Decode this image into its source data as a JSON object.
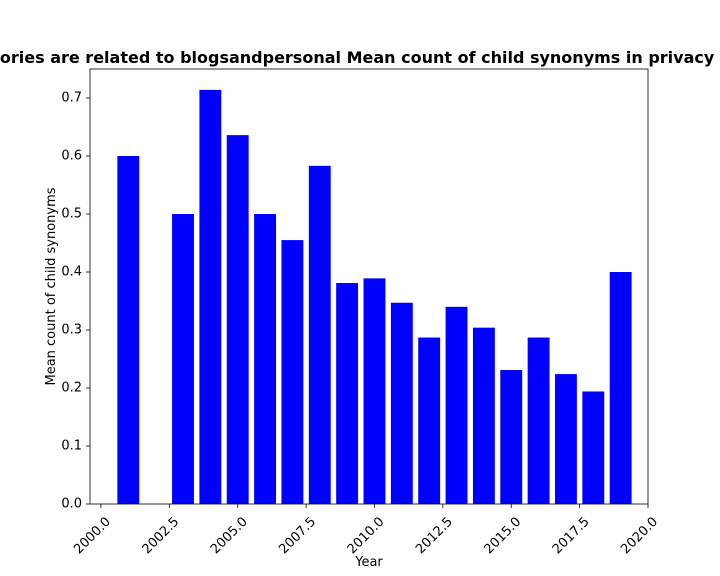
{
  "chart_data": {
    "type": "bar",
    "title": "Categories are related to blogsandpersonal Mean count of child synonyms in privacy policies",
    "xlabel": "Year",
    "ylabel": "Mean count of child synonyms",
    "bar_color": "#0000ff",
    "xlim": [
      1999.6,
      2020.0
    ],
    "ylim": [
      0.0,
      0.75
    ],
    "x_ticks": [
      2000.0,
      2002.5,
      2005.0,
      2007.5,
      2010.0,
      2012.5,
      2015.0,
      2017.5,
      2020.0
    ],
    "x_tick_labels": [
      "2000.0",
      "2002.5",
      "2005.0",
      "2007.5",
      "2010.0",
      "2012.5",
      "2015.0",
      "2017.5",
      "2020.0"
    ],
    "y_ticks": [
      0.0,
      0.1,
      0.2,
      0.3,
      0.4,
      0.5,
      0.6,
      0.7
    ],
    "y_tick_labels": [
      "0.0",
      "0.1",
      "0.2",
      "0.3",
      "0.4",
      "0.5",
      "0.6",
      "0.7"
    ],
    "x": [
      2001,
      2003,
      2004,
      2005,
      2006,
      2007,
      2008,
      2009,
      2010,
      2011,
      2012,
      2013,
      2014,
      2015,
      2016,
      2017,
      2018,
      2019
    ],
    "values": [
      0.6,
      0.5,
      0.714,
      0.636,
      0.5,
      0.455,
      0.583,
      0.381,
      0.389,
      0.347,
      0.287,
      0.34,
      0.304,
      0.231,
      0.287,
      0.224,
      0.194,
      0.4
    ],
    "grid": false,
    "legend": "none"
  }
}
